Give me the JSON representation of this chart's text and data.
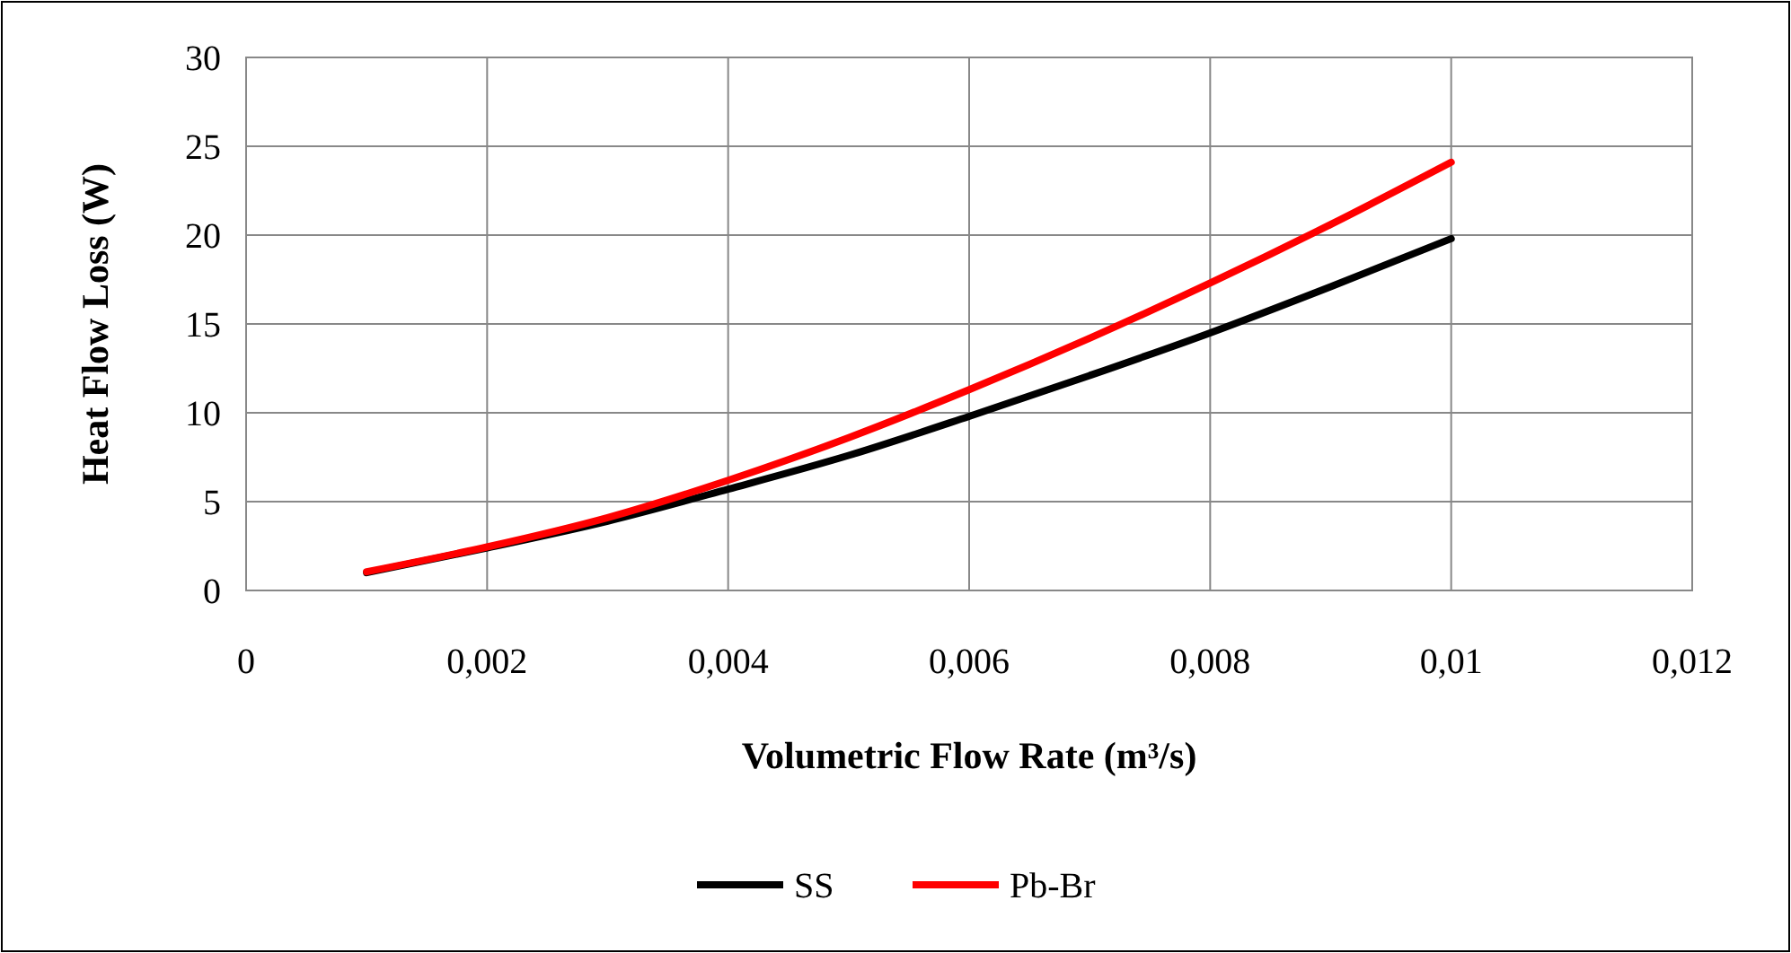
{
  "chart_data": {
    "type": "line",
    "xlabel": "Volumetric Flow Rate (m³/s)",
    "ylabel": "Heat Flow Loss (W)",
    "x": [
      0.001,
      0.002,
      0.003,
      0.004,
      0.005,
      0.006,
      0.007,
      0.008,
      0.009,
      0.01
    ],
    "series": [
      {
        "name": "SS",
        "color": "#000000",
        "values": [
          1,
          2.4,
          3.9,
          5.7,
          7.6,
          9.8,
          12.1,
          14.5,
          17.1,
          19.8
        ]
      },
      {
        "name": "Pb-Br",
        "color": "#ff0000",
        "values": [
          1.05,
          2.45,
          4.1,
          6.2,
          8.6,
          11.3,
          14.2,
          17.3,
          20.6,
          24.1
        ]
      }
    ],
    "xlim": [
      0,
      0.012
    ],
    "xticks": [
      0,
      {
        "value": 0.002,
        "label": "0,002"
      },
      {
        "value": 0.004,
        "label": "0,004"
      },
      {
        "value": 0.006,
        "label": "0,006"
      },
      {
        "value": 0.008,
        "label": "0,008"
      },
      {
        "value": 0.01,
        "label": "0,01"
      },
      {
        "value": 0.012,
        "label": "0,012"
      }
    ],
    "ylim": [
      0,
      30
    ],
    "yticks": [
      0,
      5,
      10,
      15,
      20,
      25,
      30
    ],
    "grid": true,
    "legend": "bottom",
    "marker": "none",
    "line_style": "solid"
  }
}
